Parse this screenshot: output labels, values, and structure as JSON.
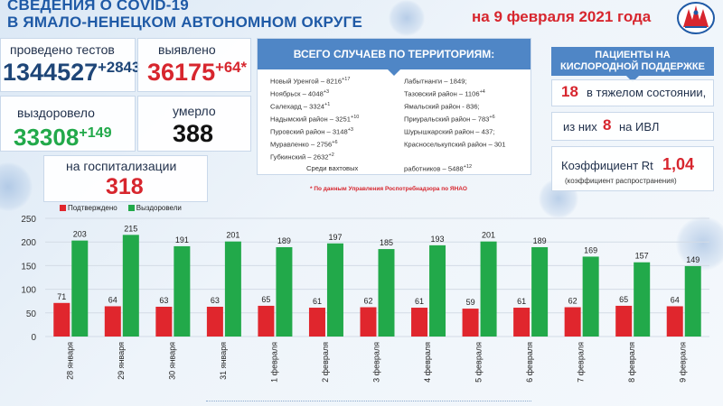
{
  "header": {
    "title_line1": "СВЕДЕНИЯ О COVID-19",
    "title_line2": "В ЯМАЛО-НЕНЕЦКОМ АВТОНОМНОМ ОКРУГЕ",
    "date": "на 9 февраля 2021 года"
  },
  "stats": {
    "tests": {
      "label": "проведено тестов",
      "value": "1344527",
      "delta": "+2843"
    },
    "detected": {
      "label": "выявлено",
      "value": "36175",
      "delta": "+64*"
    },
    "recovered": {
      "label": "выздоровело",
      "value": "33308",
      "delta": "+149"
    },
    "died": {
      "label": "умерло",
      "value": "388"
    },
    "hospital": {
      "label": "на госпитализации",
      "value": "318"
    }
  },
  "territories": {
    "title": "ВСЕГО СЛУЧАЕВ ПО ТЕРРИТОРИЯМ:",
    "left": [
      {
        "name": "Новый Уренгой – 8216",
        "delta": "+17"
      },
      {
        "name": "Ноябрьск – 4048",
        "delta": "+3"
      },
      {
        "name": "Салехард – 3324",
        "delta": "+1"
      },
      {
        "name": "Надымский район – 3251",
        "delta": "+10"
      },
      {
        "name": "Пуровский район – 3148",
        "delta": "+3"
      },
      {
        "name": "Муравленко – 2756",
        "delta": "+6"
      },
      {
        "name": "Губкинский – 2632",
        "delta": "+2"
      }
    ],
    "right": [
      {
        "name": "Лабытнанги – 1849;",
        "delta": ""
      },
      {
        "name": "Тазовский район – 1106",
        "delta": "+4"
      },
      {
        "name": "Ямальский район - 836;",
        "delta": ""
      },
      {
        "name": "Приуральский район – 783",
        "delta": "+6"
      },
      {
        "name": "Шурышкарский район – 437;",
        "delta": ""
      },
      {
        "name": "Красноселькупский район – 301",
        "delta": ""
      }
    ],
    "shift_label": "Среди вахтовых",
    "shift_value": "работников – 5488",
    "shift_delta": "+12",
    "note": "* По данным Управления  Роспотребнадзора по ЯНАО"
  },
  "oxygen": {
    "title_line1": "ПАЦИЕНТЫ НА",
    "title_line2": "КИСЛОРОДНОЙ ПОДДЕРЖКЕ",
    "severe_value": "18",
    "severe_label": "в тяжелом состоянии,",
    "ivl_prefix": "из них",
    "ivl_value": "8",
    "ivl_suffix": "на  ИВЛ",
    "rt_label": "Коэффициент Rt",
    "rt_value": "1,04",
    "rt_note": "(коэффициент распространения)"
  },
  "colors": {
    "confirmed": "#e0262d",
    "recovered": "#22a94a",
    "accent": "#4f86c6",
    "title": "#1f5aa6"
  },
  "chart_data": {
    "type": "bar",
    "categories": [
      "28 января",
      "29 января",
      "30 января",
      "31 января",
      "1 февраля",
      "2 февраля",
      "3 февраля",
      "4 февраля",
      "5 февраля",
      "6 февраля",
      "7 февраля",
      "8 февраля",
      "9 февраля"
    ],
    "series": [
      {
        "name": "Подтверждено",
        "values": [
          71,
          64,
          63,
          63,
          65,
          61,
          62,
          61,
          59,
          61,
          62,
          65,
          64
        ]
      },
      {
        "name": "Выздоровели",
        "values": [
          203,
          215,
          191,
          201,
          189,
          197,
          185,
          193,
          201,
          189,
          169,
          157,
          149
        ]
      }
    ],
    "ylim": [
      0,
      250
    ],
    "yticks": [
      0,
      50,
      100,
      150,
      200,
      250
    ],
    "grid": true,
    "legend": "top-left"
  }
}
